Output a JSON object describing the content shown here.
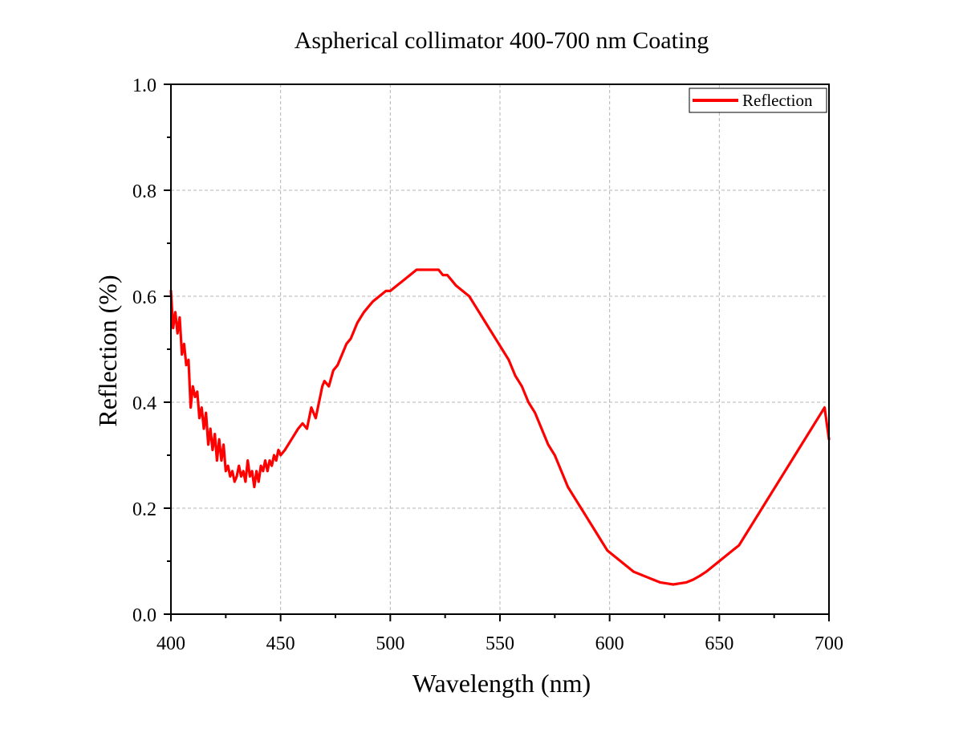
{
  "chart_data": {
    "type": "line",
    "title": "Aspherical collimator 400-700 nm Coating",
    "xlabel": "Wavelength (nm)",
    "ylabel": "Reflection (%)",
    "xlim": [
      400,
      700
    ],
    "ylim": [
      0.0,
      1.0
    ],
    "x_ticks": [
      "400",
      "450",
      "500",
      "550",
      "600",
      "650",
      "700"
    ],
    "y_ticks": [
      "0.0",
      "0.2",
      "0.4",
      "0.6",
      "0.8",
      "1.0"
    ],
    "grid": true,
    "legend_position": "top-right",
    "series": [
      {
        "name": "Reflection",
        "color": "#ff0000",
        "x": [
          400,
          401,
          402,
          403,
          404,
          405,
          406,
          407,
          408,
          409,
          410,
          411,
          412,
          413,
          414,
          415,
          416,
          417,
          418,
          419,
          420,
          421,
          422,
          423,
          424,
          425,
          426,
          427,
          428,
          429,
          430,
          431,
          432,
          433,
          434,
          435,
          436,
          437,
          438,
          439,
          440,
          441,
          442,
          443,
          444,
          445,
          446,
          447,
          448,
          449,
          450,
          452,
          455,
          458,
          460,
          462,
          464,
          466,
          468,
          469,
          470,
          472,
          474,
          476,
          478,
          480,
          482,
          485,
          488,
          490,
          492,
          495,
          498,
          500,
          503,
          506,
          509,
          512,
          515,
          518,
          520,
          522,
          524,
          526,
          528,
          530,
          533,
          536,
          539,
          542,
          545,
          548,
          551,
          554,
          557,
          560,
          563,
          566,
          569,
          572,
          575,
          578,
          581,
          584,
          587,
          590,
          593,
          596,
          599,
          602,
          605,
          608,
          611,
          614,
          617,
          620,
          623,
          626,
          629,
          632,
          635,
          638,
          641,
          644,
          647,
          650,
          653,
          656,
          659,
          662,
          665,
          668,
          671,
          674,
          677,
          680,
          683,
          686,
          689,
          692,
          695,
          698,
          700
        ],
        "values": [
          0.61,
          0.54,
          0.57,
          0.53,
          0.56,
          0.49,
          0.51,
          0.47,
          0.48,
          0.39,
          0.43,
          0.41,
          0.42,
          0.37,
          0.39,
          0.35,
          0.38,
          0.32,
          0.35,
          0.31,
          0.34,
          0.29,
          0.33,
          0.29,
          0.32,
          0.27,
          0.28,
          0.26,
          0.27,
          0.25,
          0.26,
          0.28,
          0.26,
          0.27,
          0.25,
          0.29,
          0.26,
          0.27,
          0.24,
          0.27,
          0.25,
          0.28,
          0.27,
          0.29,
          0.27,
          0.29,
          0.28,
          0.3,
          0.29,
          0.31,
          0.3,
          0.31,
          0.33,
          0.35,
          0.36,
          0.35,
          0.39,
          0.37,
          0.41,
          0.43,
          0.44,
          0.43,
          0.46,
          0.47,
          0.49,
          0.51,
          0.52,
          0.55,
          0.57,
          0.58,
          0.59,
          0.6,
          0.61,
          0.61,
          0.62,
          0.63,
          0.64,
          0.65,
          0.65,
          0.65,
          0.65,
          0.65,
          0.64,
          0.64,
          0.63,
          0.62,
          0.61,
          0.6,
          0.58,
          0.56,
          0.54,
          0.52,
          0.5,
          0.48,
          0.45,
          0.43,
          0.4,
          0.38,
          0.35,
          0.32,
          0.3,
          0.27,
          0.24,
          0.22,
          0.2,
          0.18,
          0.16,
          0.14,
          0.12,
          0.11,
          0.1,
          0.09,
          0.08,
          0.075,
          0.07,
          0.065,
          0.06,
          0.058,
          0.056,
          0.058,
          0.06,
          0.065,
          0.072,
          0.08,
          0.09,
          0.1,
          0.11,
          0.12,
          0.13,
          0.15,
          0.17,
          0.19,
          0.21,
          0.23,
          0.25,
          0.27,
          0.29,
          0.31,
          0.33,
          0.35,
          0.37,
          0.39,
          0.33
        ]
      }
    ]
  }
}
